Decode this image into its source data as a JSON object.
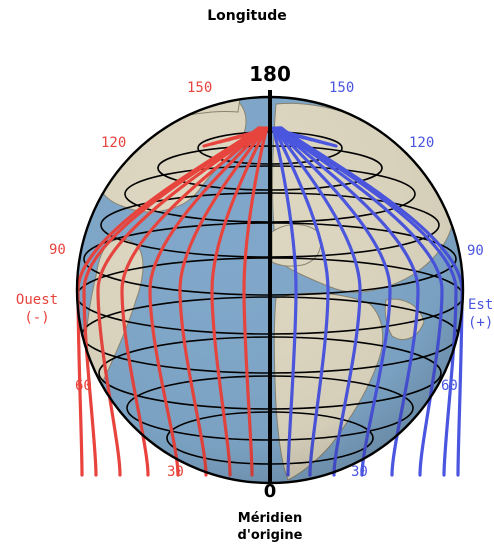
{
  "title": "Longitude",
  "pole_top_label": "180",
  "pole_bottom_label": "0",
  "origin": {
    "line1": "Méridien",
    "line2": "d'origine"
  },
  "west": {
    "name": "Ouest",
    "sign": "(-)",
    "ticks": [
      "150",
      "120",
      "90",
      "60",
      "30"
    ],
    "color": "#e8433d"
  },
  "east": {
    "name": "Est",
    "sign": "(+)",
    "ticks": [
      "150",
      "120",
      "90",
      "60",
      "30"
    ],
    "color": "#4a55e0"
  },
  "colors": {
    "ocean": "#7fa7c9",
    "land": "#ddd6c0",
    "grid": "#000000"
  }
}
